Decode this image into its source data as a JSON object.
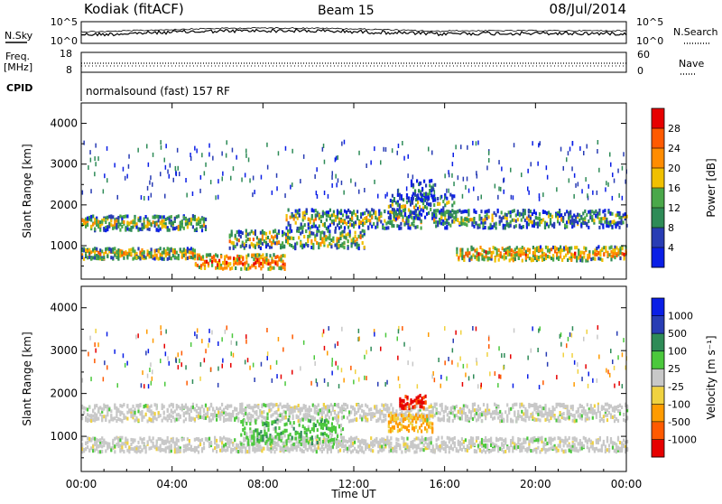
{
  "header": {
    "station": "Kodiak (fitACF)",
    "beam": "Beam 15",
    "date": "08/Jul/2014"
  },
  "noise_panel": {
    "left_label": "N.Sky",
    "right_label": "N.Search",
    "left_ticks": [
      "10^5",
      "10^0"
    ],
    "right_ticks": [
      "10^5",
      "10^0"
    ]
  },
  "freq_panel": {
    "left_label_1": "Freq.",
    "left_label_2": "[MHz]",
    "right_label": "Nave",
    "left_ticks": [
      "18",
      "8"
    ],
    "right_ticks": [
      "60",
      "0"
    ]
  },
  "cpid_panel": {
    "label": "CPID",
    "program": "normalsound (fast) 157 RF"
  },
  "colors": {
    "power": [
      "#0a1ee6",
      "#283cb4",
      "#2e8b57",
      "#4aa84a",
      "#f0c000",
      "#ff8c00",
      "#ff5a00",
      "#e60000"
    ],
    "velocity": [
      "#0a1ee6",
      "#283cb4",
      "#2e8b57",
      "#4bc83c",
      "#c8c8c8",
      "#f0d240",
      "#ff9b00",
      "#ff5a00",
      "#e60000"
    ]
  },
  "chart_data": [
    {
      "type": "heatmap",
      "name": "power",
      "ylabel": "Slant Range [km]",
      "xlabel": "Time UT",
      "x_ticks": [
        "00:00",
        "04:00",
        "08:00",
        "12:00",
        "16:00",
        "20:00",
        "00:00"
      ],
      "y_ticks": [
        "1000",
        "2000",
        "3000",
        "4000"
      ],
      "xlim_hours": [
        0,
        24
      ],
      "ylim_km": [
        180,
        4500
      ],
      "colorbar_label": "Power [dB]",
      "colorbar_ticks": [
        "4",
        "8",
        "12",
        "16",
        "20",
        "24",
        "28"
      ],
      "colorbar_range": [
        0,
        32
      ],
      "scatter_bands": [
        {
          "start_h": 0.0,
          "end_h": 5.5,
          "center_km": 1550,
          "width_km": 180,
          "level": 0.55
        },
        {
          "start_h": 0.0,
          "end_h": 5.0,
          "center_km": 800,
          "width_km": 130,
          "level": 0.65
        },
        {
          "start_h": 5.0,
          "end_h": 9.0,
          "center_km": 600,
          "width_km": 180,
          "level": 0.85
        },
        {
          "start_h": 6.5,
          "end_h": 12.5,
          "center_km": 1150,
          "width_km": 220,
          "level": 0.6
        },
        {
          "start_h": 9.0,
          "end_h": 15.0,
          "center_km": 1650,
          "width_km": 230,
          "level": 0.55
        },
        {
          "start_h": 13.5,
          "end_h": 16.5,
          "center_km": 1950,
          "width_km": 300,
          "level": 0.4
        },
        {
          "start_h": 14.5,
          "end_h": 15.6,
          "center_km": 2350,
          "width_km": 250,
          "level": 0.35
        },
        {
          "start_h": 15.5,
          "end_h": 24.0,
          "center_km": 1650,
          "width_km": 220,
          "level": 0.45
        },
        {
          "start_h": 16.5,
          "end_h": 24.0,
          "center_km": 800,
          "width_km": 170,
          "level": 0.75
        }
      ]
    },
    {
      "type": "heatmap",
      "name": "velocity",
      "ylabel": "Slant Range [km]",
      "xlabel": "Time UT",
      "x_ticks": [
        "00:00",
        "04:00",
        "08:00",
        "12:00",
        "16:00",
        "20:00",
        "00:00"
      ],
      "y_ticks": [
        "1000",
        "2000",
        "3000",
        "4000"
      ],
      "xlim_hours": [
        0,
        24
      ],
      "ylim_km": [
        180,
        4500
      ],
      "colorbar_label": "Velocity [m s⁻¹]",
      "colorbar_ticks": [
        "1000",
        "500",
        "100",
        "25",
        "-25",
        "-100",
        "-500",
        "-1000"
      ],
      "colorbar_range": [
        -1000,
        1000
      ],
      "scatter_bands": [
        {
          "start_h": 0.0,
          "end_h": 24.0,
          "center_km": 1550,
          "width_km": 200,
          "level": 0.5
        },
        {
          "start_h": 0.0,
          "end_h": 24.0,
          "center_km": 800,
          "width_km": 170,
          "level": 0.5
        },
        {
          "start_h": 7.0,
          "end_h": 11.5,
          "center_km": 1100,
          "width_km": 300,
          "level": 0.7
        },
        {
          "start_h": 13.5,
          "end_h": 15.5,
          "center_km": 1300,
          "width_km": 200,
          "level": 0.25
        },
        {
          "start_h": 14.0,
          "end_h": 15.2,
          "center_km": 1800,
          "width_km": 150,
          "level": 0.1
        }
      ]
    }
  ]
}
